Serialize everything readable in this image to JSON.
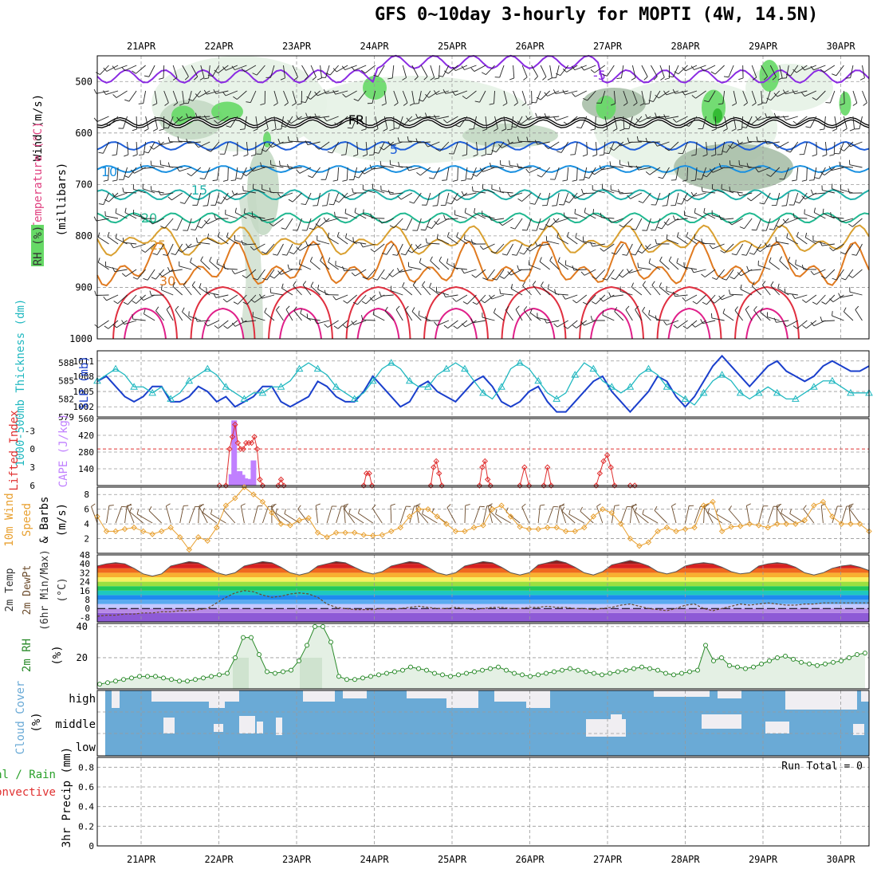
{
  "title": "GFS 0~10day 3-hourly for MOPTI (4W, 14.5N)",
  "colors": {
    "rh_light": "#e6f2e6",
    "rh_mid": "#c4d9c4",
    "rh_gray": "#a8bfa8",
    "rh_green": "#66d966",
    "rh_dark": "#2db82d",
    "freezing": "#000000",
    "minus5": "#8a2be2",
    "iso5": "#1f5fd9",
    "iso10": "#1a90e0",
    "iso15": "#20b2aa",
    "iso20": "#20b890",
    "iso25": "#d9a030",
    "iso30": "#e07a20",
    "iso35": "#e03040",
    "iso40": "#e0208a",
    "slp": "#1a3fcc",
    "thickness": "#20b8c0",
    "cape": "#c080ff",
    "lifted": "#e03030",
    "wind10": "#e8a030",
    "rh2m": "#2a8a2a",
    "cloud": "#6aaad6",
    "cloud_clear": "#f0eef2"
  },
  "chart_data": [
    {
      "panel": "upper-air",
      "type": "contour",
      "xticks": [
        "21APR",
        "22APR",
        "23APR",
        "24APR",
        "25APR",
        "26APR",
        "27APR",
        "28APR",
        "29APR",
        "30APR"
      ],
      "ylabel_wind": "Wind (m/s)",
      "ylabel_temp": "Temperature (°C)",
      "ylabel_rh": "RH (%)",
      "ylabel_units": "(millibars)",
      "yticks": [
        500,
        600,
        700,
        800,
        900,
        1000
      ],
      "ylim": [
        1000,
        450
      ],
      "contour_labels": [
        {
          "text": "-5",
          "level": -5
        },
        {
          "text": "FR",
          "level": 0
        },
        {
          "text": "5",
          "level": 5
        },
        {
          "text": "10",
          "level": 10
        },
        {
          "text": "15",
          "level": 15
        },
        {
          "text": "20",
          "level": 20
        },
        {
          "text": "25",
          "level": 25
        },
        {
          "text": "30",
          "level": 30
        }
      ],
      "isotherm_p": {
        "minus5": 490,
        "fr": 580,
        "i5": 625,
        "i10": 670,
        "i15": 720,
        "i20": 765,
        "i25": 810,
        "i30": 860
      }
    },
    {
      "panel": "slp-thickness",
      "type": "line",
      "ylabel_left": "1000-500mb Thickness (dm)",
      "ylabel_right": "SLP (mb)",
      "yticks_left": [
        579,
        582,
        585,
        588
      ],
      "yticks_right": [
        1002,
        1005,
        1008,
        1011
      ],
      "ylim_left": [
        579,
        590
      ],
      "series": [
        {
          "name": "SLP",
          "axis": "right",
          "values": [
            1007,
            1008,
            1006,
            1004,
            1003,
            1004,
            1006,
            1006,
            1003,
            1003,
            1004,
            1006,
            1005,
            1003,
            1004,
            1002,
            1003,
            1004,
            1006,
            1006,
            1003,
            1002,
            1003,
            1004,
            1007,
            1006,
            1004,
            1003,
            1003,
            1005,
            1008,
            1006,
            1004,
            1002,
            1003,
            1006,
            1007,
            1005,
            1004,
            1003,
            1005,
            1007,
            1008,
            1006,
            1003,
            1002,
            1003,
            1005,
            1006,
            1003,
            1001,
            1001,
            1003,
            1005,
            1007,
            1008,
            1005,
            1003,
            1001,
            1003,
            1005,
            1008,
            1007,
            1004,
            1002,
            1004,
            1007,
            1010,
            1012,
            1010,
            1008,
            1006,
            1008,
            1010,
            1011,
            1009,
            1008,
            1007,
            1008,
            1010,
            1011,
            1010,
            1009,
            1009,
            1010
          ]
        },
        {
          "name": "Thickness",
          "axis": "left",
          "values": [
            585,
            586,
            587,
            586,
            584,
            584,
            583,
            584,
            582,
            583,
            585,
            586,
            587,
            586,
            584,
            583,
            582,
            583,
            583,
            584,
            584,
            585,
            587,
            588,
            587,
            586,
            584,
            583,
            582,
            583,
            585,
            587,
            588,
            587,
            585,
            584,
            584,
            586,
            587,
            588,
            587,
            585,
            583,
            582,
            584,
            587,
            588,
            587,
            585,
            583,
            582,
            583,
            586,
            588,
            587,
            585,
            584,
            583,
            584,
            586,
            587,
            586,
            584,
            583,
            582,
            581,
            583,
            585,
            586,
            585,
            583,
            582,
            583,
            584,
            583,
            582,
            582,
            583,
            584,
            585,
            585,
            584,
            583,
            583,
            583
          ]
        }
      ]
    },
    {
      "panel": "cape-lifted",
      "type": "bar",
      "ylabel_left": "Lifted Index",
      "ylabel_right": "CAPE (J/kg)",
      "yticks_left": [
        "-3",
        "0",
        "3",
        "6"
      ],
      "yticks_right": [
        140,
        280,
        420,
        560
      ],
      "ylim_cape": [
        0,
        560
      ],
      "cape_bars": [
        {
          "x": 14.6,
          "v": 95
        },
        {
          "x": 14.9,
          "v": 545
        },
        {
          "x": 15.2,
          "v": 100
        },
        {
          "x": 15.5,
          "v": 120
        },
        {
          "x": 15.8,
          "v": 90
        },
        {
          "x": 16.1,
          "v": 60
        },
        {
          "x": 16.4,
          "v": 40
        },
        {
          "x": 16.7,
          "v": 55
        },
        {
          "x": 17.0,
          "v": 210
        }
      ],
      "lifted_index": [
        {
          "x": 13.3,
          "v": 6
        },
        {
          "x": 14.0,
          "v": 6
        },
        {
          "x": 14.4,
          "v": 0
        },
        {
          "x": 14.7,
          "v": -2
        },
        {
          "x": 15.0,
          "v": -4
        },
        {
          "x": 15.3,
          "v": -1
        },
        {
          "x": 15.6,
          "v": 0
        },
        {
          "x": 15.9,
          "v": 0
        },
        {
          "x": 16.2,
          "v": -1
        },
        {
          "x": 16.5,
          "v": -1
        },
        {
          "x": 16.8,
          "v": -1
        },
        {
          "x": 17.1,
          "v": -2
        },
        {
          "x": 17.4,
          "v": 0
        },
        {
          "x": 17.7,
          "v": 5
        },
        {
          "x": 18.0,
          "v": 6
        },
        {
          "x": 19.7,
          "v": 6
        },
        {
          "x": 20.0,
          "v": 5
        },
        {
          "x": 20.3,
          "v": 6
        },
        {
          "x": 29.0,
          "v": 6
        },
        {
          "x": 29.3,
          "v": 4
        },
        {
          "x": 29.6,
          "v": 4
        },
        {
          "x": 29.9,
          "v": 6
        },
        {
          "x": 36.3,
          "v": 6
        },
        {
          "x": 36.6,
          "v": 3
        },
        {
          "x": 36.9,
          "v": 2
        },
        {
          "x": 37.2,
          "v": 4
        },
        {
          "x": 37.5,
          "v": 6
        },
        {
          "x": 41.6,
          "v": 6
        },
        {
          "x": 41.9,
          "v": 3
        },
        {
          "x": 42.2,
          "v": 2
        },
        {
          "x": 42.5,
          "v": 5
        },
        {
          "x": 42.8,
          "v": 6
        },
        {
          "x": 46.0,
          "v": 6
        },
        {
          "x": 46.5,
          "v": 3
        },
        {
          "x": 47.0,
          "v": 6
        },
        {
          "x": 48.6,
          "v": 6
        },
        {
          "x": 49.0,
          "v": 3
        },
        {
          "x": 49.4,
          "v": 6
        },
        {
          "x": 54.3,
          "v": 6
        },
        {
          "x": 54.7,
          "v": 4
        },
        {
          "x": 55.1,
          "v": 2
        },
        {
          "x": 55.5,
          "v": 1
        },
        {
          "x": 55.9,
          "v": 3
        },
        {
          "x": 56.3,
          "v": 6
        },
        {
          "x": 58.0,
          "v": 6
        },
        {
          "x": 58.5,
          "v": 6
        }
      ]
    },
    {
      "panel": "wind10m",
      "type": "line",
      "ylabel_a": "10m Wind",
      "ylabel_b": "Speed",
      "ylabel_c": "& Barbs",
      "ylabel_units": "(m/s)",
      "yticks": [
        2,
        4,
        6,
        8
      ],
      "ylim": [
        0,
        9
      ],
      "series": [
        {
          "name": "Speed",
          "values": [
            5,
            3,
            3,
            3.3,
            3.5,
            3,
            2.6,
            3,
            3.5,
            2.2,
            0.5,
            2.2,
            1.7,
            3.5,
            6.5,
            7.5,
            9,
            8,
            7,
            5.5,
            4,
            3.8,
            4.5,
            4.8,
            2.8,
            2.2,
            2.8,
            2.8,
            2.8,
            2.5,
            2.4,
            2.5,
            3,
            3.5,
            5,
            6,
            6,
            5,
            4,
            3,
            3,
            3.5,
            3.8,
            6,
            6.5,
            5,
            3.6,
            3.3,
            3.3,
            3.5,
            3.5,
            3,
            3,
            3.5,
            5,
            6,
            5.5,
            4,
            2,
            1,
            1.5,
            3,
            3.5,
            3,
            3.3,
            3.5,
            6.5,
            7,
            3,
            3.6,
            3.7,
            4,
            3.8,
            3.5,
            4,
            4,
            4,
            4.5,
            6.5,
            7,
            5,
            4,
            4,
            4,
            3
          ]
        }
      ]
    },
    {
      "panel": "temp2m",
      "type": "area",
      "ylabel_a": "2m Temp",
      "ylabel_b": "2m DewPt",
      "ylabel_c": "(6hr Min/Max)",
      "ylabel_units": "(°C)",
      "yticks": [
        -8,
        0,
        8,
        16,
        24,
        32,
        40,
        48
      ],
      "ylim": [
        -12,
        48
      ],
      "temp_series": [
        38,
        40,
        41,
        40,
        36,
        31,
        29,
        31,
        38,
        40,
        42,
        41,
        37,
        32,
        30,
        32,
        38,
        40,
        42,
        41,
        37,
        32,
        30,
        32,
        38,
        40,
        42,
        41,
        37,
        33,
        31,
        33,
        38,
        40,
        42,
        41,
        37,
        32,
        30,
        32,
        38,
        40,
        42,
        41,
        37,
        32,
        30,
        32,
        39,
        41,
        43,
        41,
        37,
        32,
        30,
        33,
        39,
        41,
        43,
        41,
        38,
        33,
        31,
        33,
        38,
        40,
        41,
        40,
        37,
        33,
        31,
        32,
        38,
        40,
        41,
        40,
        37,
        32,
        30,
        32,
        36,
        38,
        39,
        37,
        34
      ],
      "dew_series": [
        -7,
        -6,
        -6,
        -5,
        -5,
        -4,
        -4,
        -3,
        -3,
        -2,
        -2,
        -1,
        0,
        5,
        10,
        14,
        16,
        15,
        12,
        10,
        11,
        13,
        14,
        13,
        10,
        4,
        1,
        0,
        -1,
        -1,
        -1,
        0,
        -1,
        0,
        1,
        2,
        1,
        0,
        0,
        1,
        0,
        -1,
        0,
        1,
        1,
        0,
        0,
        1,
        1,
        2,
        1,
        1,
        0,
        0,
        -1,
        0,
        1,
        3,
        4,
        2,
        0,
        -1,
        -2,
        0,
        3,
        4,
        0,
        -2,
        0,
        2,
        4,
        3,
        4,
        5,
        4,
        3,
        3,
        4,
        4,
        5,
        5,
        5,
        5,
        5,
        5
      ]
    },
    {
      "panel": "rh2m",
      "type": "area",
      "ylabel": "2m RH",
      "ylabel_units": "(%)",
      "yticks": [
        20,
        40
      ],
      "ylim": [
        0,
        42
      ],
      "series": [
        {
          "name": "2m RH",
          "values": [
            3,
            4,
            5,
            6,
            7,
            8,
            8,
            8,
            7,
            6,
            5,
            5,
            6,
            7,
            8,
            9,
            10,
            20,
            33,
            33,
            22,
            11,
            10,
            11,
            12,
            18,
            28,
            40,
            40,
            30,
            8,
            6,
            6,
            7,
            8,
            9,
            10,
            11,
            12,
            14,
            13,
            12,
            10,
            9,
            8,
            9,
            10,
            11,
            12,
            13,
            14,
            12,
            10,
            9,
            8,
            9,
            10,
            11,
            12,
            13,
            12,
            11,
            10,
            9,
            10,
            11,
            12,
            13,
            14,
            13,
            12,
            10,
            9,
            10,
            11,
            12,
            28,
            18,
            20,
            15,
            14,
            13,
            14,
            16,
            18,
            20,
            21,
            19,
            17,
            16,
            15,
            16,
            17,
            18,
            20,
            22,
            23
          ]
        }
      ]
    },
    {
      "panel": "cloud",
      "type": "heatmap",
      "ylabel": "Cloud Cover",
      "ylabel_units": "(%)",
      "rows": [
        "high",
        "middle",
        "low"
      ]
    },
    {
      "panel": "precip",
      "type": "bar",
      "ylabel_a": "Total / Rain",
      "ylabel_b": "Convective",
      "ylabel_c": "3hr Precip (mm)",
      "yticks": [
        "0",
        "0.2",
        "0.4",
        "0.6",
        "0.8"
      ],
      "ylim": [
        0,
        0.9
      ],
      "run_total": "Run Total = 0",
      "values": []
    }
  ]
}
